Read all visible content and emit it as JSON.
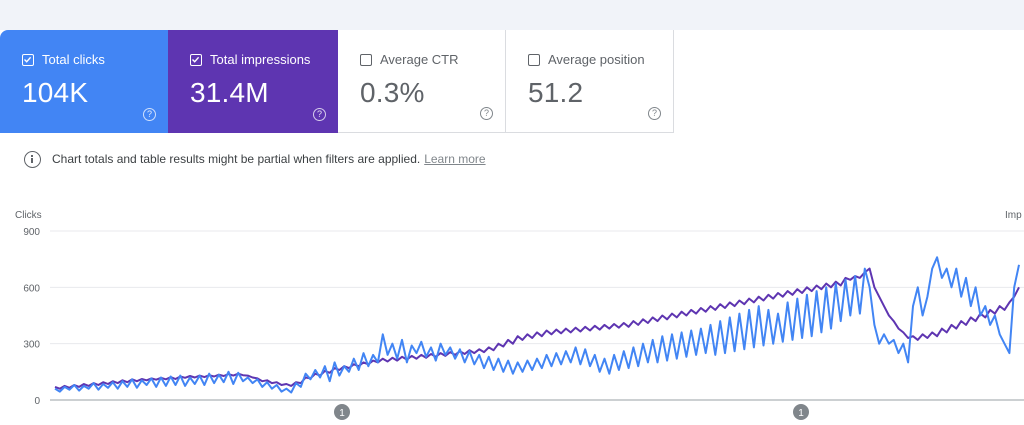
{
  "cards": [
    {
      "label": "Total clicks",
      "value": "104K",
      "checked": true,
      "color": "#4285f4"
    },
    {
      "label": "Total impressions",
      "value": "31.4M",
      "checked": true,
      "color": "#5e35b1"
    },
    {
      "label": "Average CTR",
      "value": "0.3%",
      "checked": false
    },
    {
      "label": "Average position",
      "value": "51.2",
      "checked": false
    }
  ],
  "help_glyph": "?",
  "notice": {
    "text": "Chart totals and table results might be partial when filters are applied.",
    "link": "Learn more"
  },
  "chart_data": {
    "type": "line",
    "left_axis_label": "Clicks",
    "right_axis_label": "Imp",
    "left_ticks": [
      "900",
      "600",
      "300",
      "0"
    ],
    "ylim": [
      0,
      900
    ],
    "annotation_markers": [
      "1",
      "1"
    ],
    "grid": true,
    "series": [
      {
        "name": "Total clicks",
        "color": "#4285f4",
        "values": [
          60,
          45,
          70,
          55,
          80,
          50,
          75,
          60,
          90,
          55,
          85,
          65,
          95,
          60,
          100,
          70,
          110,
          65,
          105,
          80,
          115,
          70,
          120,
          75,
          125,
          80,
          130,
          75,
          120,
          85,
          130,
          80,
          140,
          90,
          135,
          95,
          150,
          85,
          145,
          100,
          120,
          90,
          110,
          70,
          95,
          60,
          80,
          45,
          60,
          40,
          90,
          70,
          140,
          110,
          160,
          120,
          180,
          100,
          200,
          130,
          180,
          150,
          220,
          160,
          250,
          180,
          240,
          200,
          350,
          240,
          300,
          220,
          320,
          200,
          290,
          250,
          310,
          230,
          280,
          210,
          300,
          240,
          280,
          220,
          270,
          200,
          260,
          190,
          240,
          170,
          230,
          160,
          220,
          150,
          210,
          140,
          200,
          150,
          210,
          160,
          220,
          170,
          240,
          180,
          250,
          190,
          260,
          200,
          280,
          190,
          270,
          180,
          240,
          150,
          220,
          140,
          240,
          160,
          260,
          170,
          280,
          180,
          300,
          200,
          320,
          200,
          340,
          210,
          350,
          220,
          360,
          230,
          370,
          240,
          380,
          250,
          400,
          240,
          420,
          250,
          440,
          260,
          460,
          270,
          480,
          280,
          500,
          290,
          480,
          300,
          460,
          310,
          520,
          320,
          540,
          330,
          560,
          340,
          580,
          360,
          600,
          380,
          620,
          420,
          640,
          450,
          660,
          460,
          700,
          600,
          400,
          300,
          350,
          300,
          320,
          250,
          300,
          200,
          500,
          600,
          450,
          550,
          700,
          760,
          650,
          700,
          600,
          700,
          550,
          650,
          500,
          600,
          450,
          500,
          400,
          450,
          350,
          300,
          250,
          600,
          720
        ]
      },
      {
        "name": "Total impressions",
        "color": "#5e35b1",
        "values": [
          70,
          60,
          75,
          65,
          80,
          70,
          85,
          75,
          90,
          80,
          95,
          85,
          100,
          90,
          105,
          95,
          110,
          100,
          112,
          105,
          115,
          108,
          118,
          110,
          122,
          112,
          125,
          118,
          128,
          120,
          130,
          122,
          132,
          125,
          135,
          128,
          138,
          130,
          140,
          132,
          130,
          120,
          115,
          100,
          105,
          90,
          95,
          80,
          85,
          75,
          95,
          90,
          120,
          115,
          140,
          130,
          155,
          145,
          170,
          160,
          180,
          170,
          190,
          180,
          200,
          190,
          210,
          200,
          220,
          205,
          225,
          210,
          230,
          215,
          235,
          220,
          240,
          225,
          245,
          230,
          250,
          235,
          255,
          240,
          260,
          245,
          265,
          250,
          270,
          255,
          280,
          265,
          300,
          285,
          320,
          300,
          340,
          320,
          350,
          330,
          360,
          340,
          370,
          350,
          375,
          355,
          380,
          360,
          385,
          365,
          390,
          370,
          395,
          375,
          400,
          380,
          405,
          385,
          410,
          390,
          420,
          400,
          430,
          410,
          440,
          420,
          450,
          430,
          460,
          440,
          470,
          450,
          480,
          460,
          490,
          470,
          500,
          480,
          510,
          490,
          520,
          500,
          530,
          510,
          540,
          520,
          550,
          530,
          560,
          540,
          570,
          550,
          580,
          560,
          590,
          570,
          600,
          580,
          610,
          590,
          620,
          600,
          630,
          610,
          650,
          640,
          660,
          650,
          680,
          700,
          600,
          550,
          500,
          450,
          420,
          380,
          360,
          330,
          340,
          320,
          350,
          330,
          360,
          340,
          380,
          360,
          400,
          380,
          420,
          400,
          440,
          420,
          460,
          440,
          480,
          460,
          500,
          480,
          520,
          550,
          600
        ]
      }
    ]
  }
}
